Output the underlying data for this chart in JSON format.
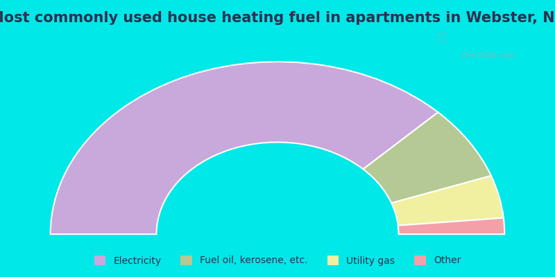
{
  "title": "Most commonly used house heating fuel in apartments in Webster, NC",
  "slices": [
    {
      "label": "Electricity",
      "value": 75,
      "color": "#c9a8dc"
    },
    {
      "label": "Fuel oil, kerosene, etc.",
      "value": 14,
      "color": "#b5c994"
    },
    {
      "label": "Utility gas",
      "value": 8,
      "color": "#f0f0a0"
    },
    {
      "label": "Other",
      "value": 3,
      "color": "#f4a0a8"
    }
  ],
  "background_top": "#00e8e8",
  "background_chart_color": "#cce8d8",
  "title_color": "#303050",
  "title_fontsize": 15,
  "legend_fontsize": 10,
  "watermark": "City-Data.com"
}
